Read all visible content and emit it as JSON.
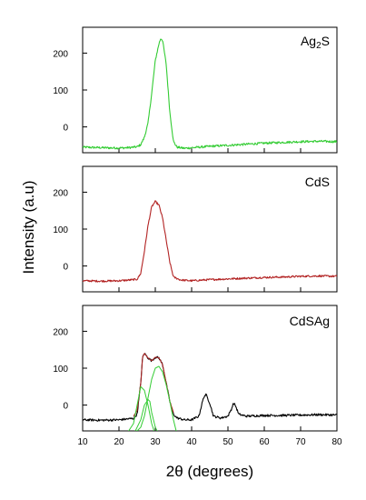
{
  "chart_data": {
    "type": "line",
    "xlabel": "2θ (degrees)",
    "ylabel": "Intensity (a.u)",
    "xlim": [
      10,
      80
    ],
    "x_ticks": [
      10,
      20,
      30,
      40,
      50,
      60,
      70,
      80
    ],
    "x_tick_labels": [
      "10",
      "20",
      "30",
      "40",
      "50",
      "60",
      "70",
      "80"
    ],
    "ylim": [
      -70,
      270
    ],
    "y_ticks": [
      0,
      100,
      200
    ],
    "y_tick_labels": [
      "0",
      "100",
      "200"
    ],
    "grid": false,
    "panels": [
      {
        "label_html": "Ag<sub>2</sub>S",
        "label_main": "Ag",
        "label_sub": "2",
        "label_end": "S",
        "series": [
          {
            "color": "#33cc33",
            "noise": 3,
            "x": [
              10,
              14,
              18,
              21,
              23,
              25,
              26,
              27,
              28,
              29,
              30,
              31,
              31.5,
              32,
              33,
              34,
              35,
              36,
              38,
              42,
              46,
              50,
              55,
              60,
              65,
              70,
              75,
              80
            ],
            "y": [
              -55,
              -56,
              -57,
              -57,
              -56,
              -54,
              -48,
              -28,
              10,
              90,
              180,
              225,
              240,
              235,
              170,
              40,
              -40,
              -55,
              -58,
              -55,
              -52,
              -50,
              -47,
              -44,
              -42,
              -40,
              -39,
              -40
            ]
          }
        ]
      },
      {
        "label": "CdS",
        "series": [
          {
            "color": "#b22222",
            "noise": 2.5,
            "x": [
              10,
              15,
              20,
              23,
              25,
              26,
              27,
              28,
              29,
              30,
              31,
              32,
              33,
              34,
              35,
              37,
              40,
              45,
              50,
              55,
              60,
              65,
              70,
              75,
              80
            ],
            "y": [
              -40,
              -41,
              -40,
              -38,
              -36,
              -20,
              40,
              110,
              160,
              175,
              165,
              130,
              70,
              10,
              -30,
              -38,
              -40,
              -37,
              -35,
              -33,
              -31,
              -30,
              -28,
              -27,
              -28
            ]
          }
        ]
      },
      {
        "label": "CdSAg",
        "series": [
          {
            "color": "#000000",
            "noise": 3,
            "x": [
              10,
              15,
              20,
              22,
              24,
              25,
              26,
              26.5,
              27,
              28,
              29,
              30,
              31,
              32,
              33,
              34,
              35,
              36,
              38,
              40,
              42,
              43,
              43.5,
              44,
              45,
              46,
              48,
              50,
              51,
              51.5,
              52,
              53,
              55,
              60,
              65,
              70,
              75,
              80
            ],
            "y": [
              -40,
              -41,
              -40,
              -38,
              -36,
              -25,
              60,
              130,
              140,
              128,
              120,
              130,
              128,
              110,
              60,
              10,
              -25,
              -35,
              -40,
              -40,
              -30,
              10,
              25,
              28,
              5,
              -30,
              -35,
              -30,
              -10,
              5,
              0,
              -25,
              -30,
              -28,
              -28,
              -27,
              -26,
              -27
            ]
          },
          {
            "color": "#b22222",
            "noise": 0,
            "x": [
              24,
              25,
              26,
              26.5,
              27,
              28,
              29,
              30,
              31,
              32,
              33,
              34,
              35
            ],
            "y": [
              -30,
              -15,
              60,
              130,
              140,
              128,
              120,
              130,
              128,
              110,
              60,
              10,
              -20
            ]
          },
          {
            "color": "#33cc33",
            "noise": 0,
            "x": [
              22,
              24,
              25,
              26,
              27,
              28,
              29,
              30
            ],
            "y": [
              -80,
              -50,
              0,
              50,
              40,
              0,
              -50,
              -80
            ]
          },
          {
            "color": "#33cc33",
            "noise": 0,
            "x": [
              24,
              26,
              27,
              28,
              28.5,
              29,
              30,
              31
            ],
            "y": [
              -80,
              -40,
              0,
              15,
              10,
              -20,
              -60,
              -80
            ]
          },
          {
            "color": "#33cc33",
            "noise": 0,
            "x": [
              24,
              26,
              27,
              28,
              29,
              30,
              31,
              32,
              33,
              34,
              35,
              36
            ],
            "y": [
              -80,
              -60,
              -30,
              20,
              70,
              100,
              105,
              90,
              55,
              10,
              -40,
              -80
            ]
          }
        ]
      }
    ]
  }
}
